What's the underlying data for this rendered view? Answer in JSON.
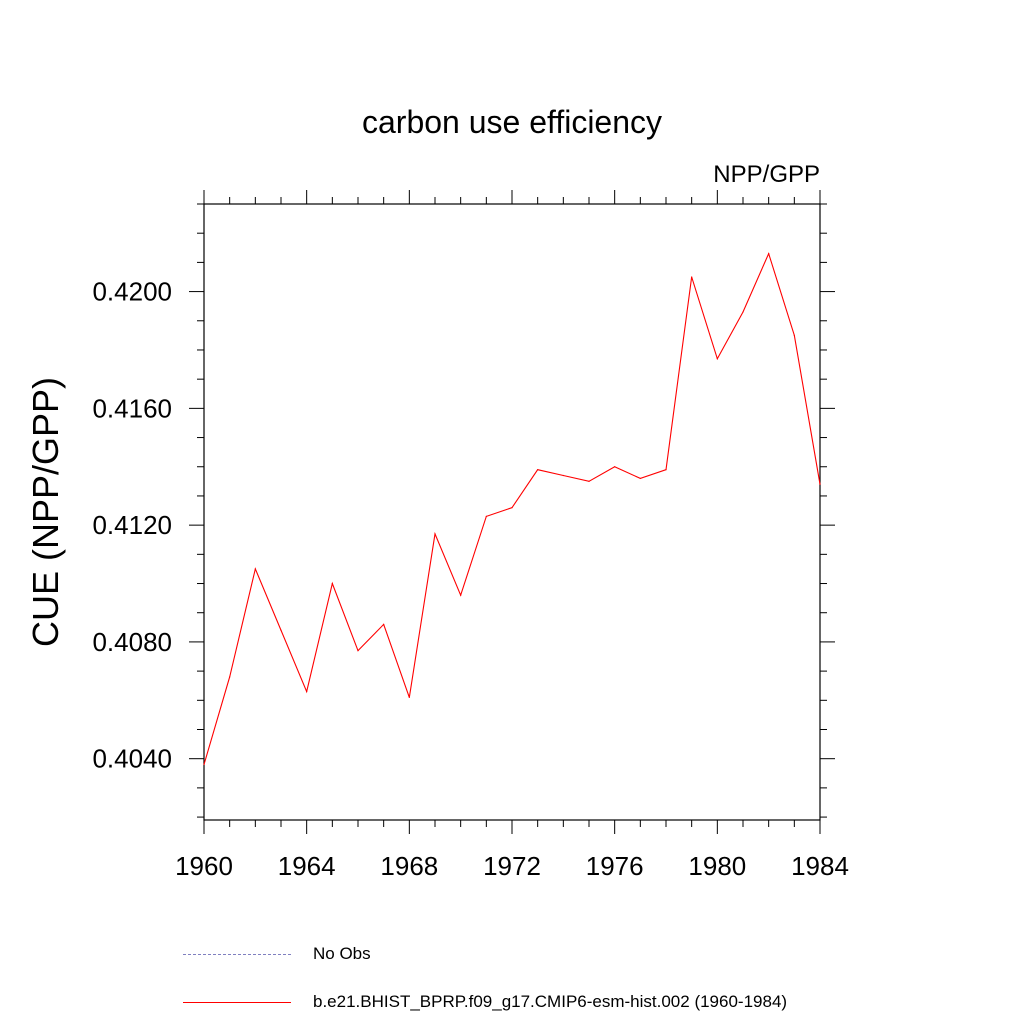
{
  "chart_data": {
    "type": "line",
    "title": "carbon use efficiency",
    "subtitle": "NPP/GPP",
    "ylabel": "CUE  (NPP/GPP)",
    "xlabel": "",
    "xlim": [
      1960,
      1984
    ],
    "ylim": [
      0.4019,
      0.423
    ],
    "xticks": [
      1960,
      1964,
      1968,
      1972,
      1976,
      1980,
      1984
    ],
    "xtick_labels": [
      "1960",
      "1964",
      "1968",
      "1972",
      "1976",
      "1980",
      "1984"
    ],
    "yticks": [
      0.404,
      0.408,
      0.412,
      0.416,
      0.42
    ],
    "ytick_labels": [
      "0.4040",
      "0.4080",
      "0.4120",
      "0.4160",
      "0.4200"
    ],
    "series": [
      {
        "name": "b.e21.BHIST_BPRP.f09_g17.CMIP6-esm-hist.002 (1960-1984)",
        "color": "#ff0000",
        "x": [
          1960,
          1961,
          1962,
          1963,
          1964,
          1965,
          1966,
          1967,
          1968,
          1969,
          1970,
          1971,
          1972,
          1973,
          1974,
          1975,
          1976,
          1977,
          1978,
          1979,
          1980,
          1981,
          1982,
          1983,
          1984
        ],
        "values": [
          0.4038,
          0.4068,
          0.4105,
          0.4084,
          0.4063,
          0.41,
          0.4077,
          0.4086,
          0.4061,
          0.4117,
          0.4096,
          0.4123,
          0.4126,
          0.4139,
          0.4137,
          0.4135,
          0.414,
          0.4136,
          0.4139,
          0.4205,
          0.4177,
          0.4193,
          0.4213,
          0.4185,
          0.4134
        ]
      }
    ],
    "legend": [
      {
        "label": "No Obs",
        "style": "dashed",
        "color": "#8080c0"
      },
      {
        "label": "b.e21.BHIST_BPRP.f09_g17.CMIP6-esm-hist.002 (1960-1984)",
        "style": "solid",
        "color": "#ff0000"
      }
    ],
    "legend_position": "bottom",
    "grid": false
  }
}
